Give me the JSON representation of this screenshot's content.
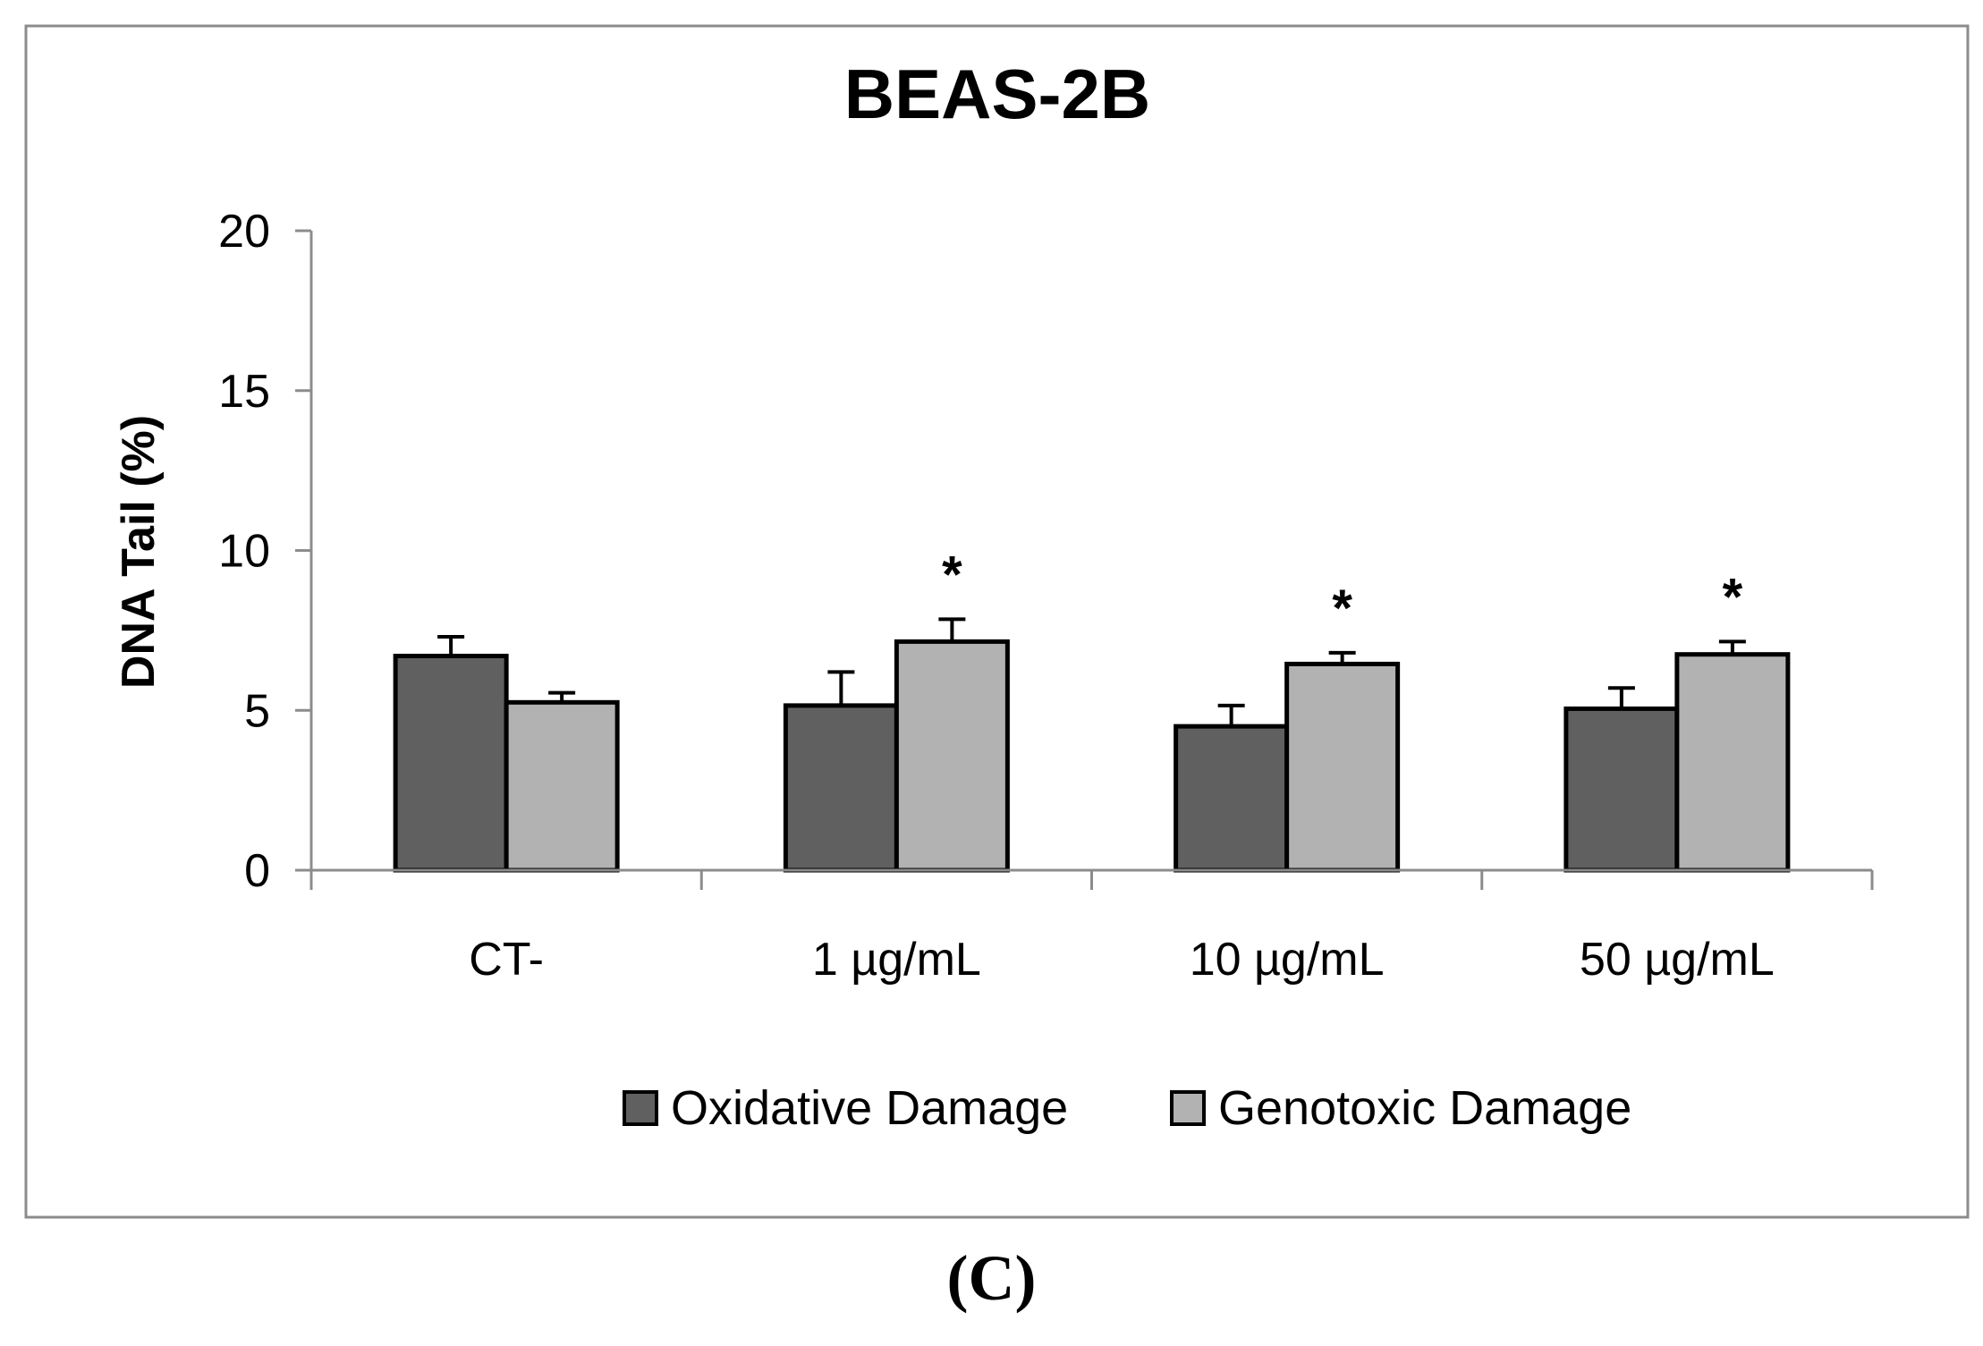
{
  "caption": "(C)",
  "chart_data": {
    "type": "bar",
    "title": "BEAS-2B",
    "ylabel": "DNA Tail (%)",
    "xlabel": "",
    "ylim": [
      0,
      20
    ],
    "yticks": [
      0,
      5,
      10,
      15,
      20
    ],
    "categories": [
      "CT-",
      "1 µg/mL",
      "10 µg/mL",
      "50 µg/mL"
    ],
    "series": [
      {
        "name": "Oxidative Damage",
        "color": "#606060",
        "values": [
          6.7,
          5.15,
          4.5,
          5.05
        ],
        "errors": [
          0.6,
          1.05,
          0.65,
          0.65
        ]
      },
      {
        "name": "Genotoxic Damage",
        "color": "#b2b2b2",
        "values": [
          5.25,
          7.15,
          6.45,
          6.75
        ],
        "errors": [
          0.3,
          0.7,
          0.35,
          0.4
        ]
      }
    ],
    "annotations": [
      {
        "category": "1 µg/mL",
        "series": "Genotoxic Damage",
        "text": "*"
      },
      {
        "category": "10 µg/mL",
        "series": "Genotoxic Damage",
        "text": "*"
      },
      {
        "category": "50 µg/mL",
        "series": "Genotoxic Damage",
        "text": "*"
      }
    ],
    "legend_position": "bottom"
  }
}
